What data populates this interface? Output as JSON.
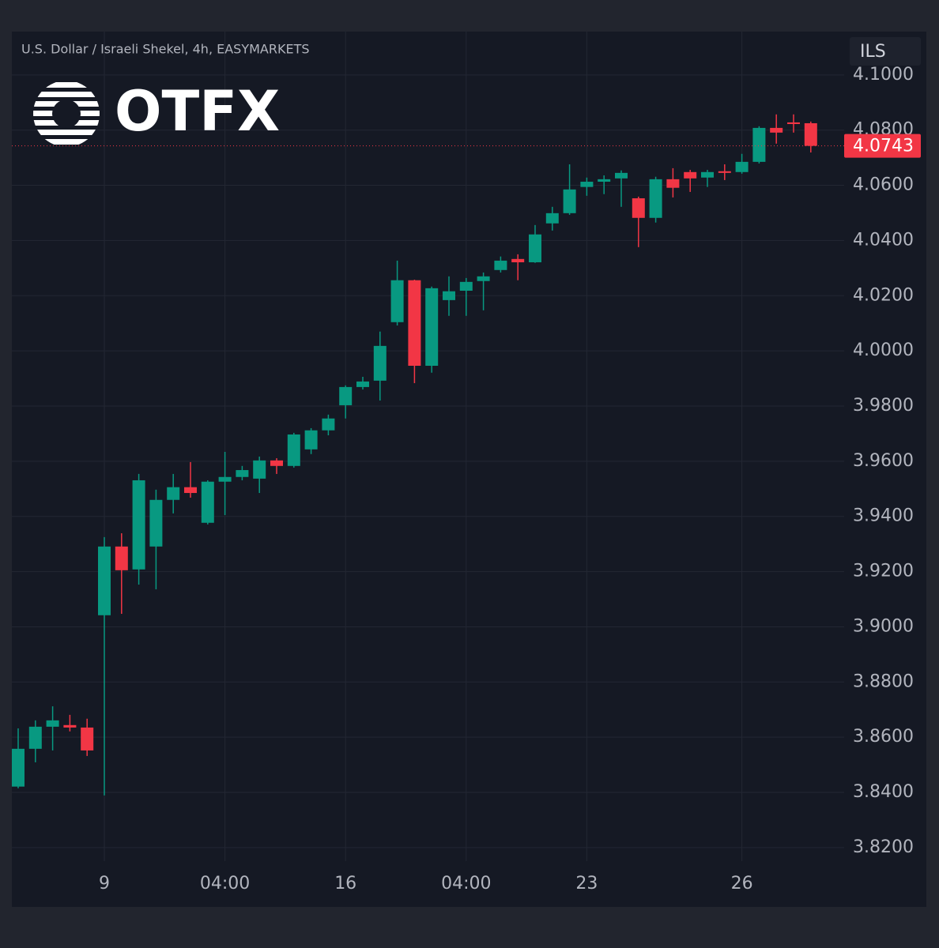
{
  "chart_data": {
    "type": "candlestick",
    "title": "U.S. Dollar / Israeli Shekel, 4h, EASYMARKETS",
    "logo": "OTFX",
    "currency": "ILS",
    "categories": [
      null,
      null,
      null,
      null,
      null,
      "9",
      null,
      null,
      null,
      null,
      null,
      null,
      "04:00",
      null,
      null,
      null,
      null,
      null,
      null,
      "16",
      null,
      null,
      null,
      null,
      null,
      null,
      "04:00",
      null,
      null,
      null,
      null,
      null,
      null,
      "23",
      null,
      null,
      null,
      null,
      null,
      null,
      null,
      null,
      "26",
      null,
      null,
      null,
      null
    ],
    "open": [
      3.8421,
      3.8558,
      3.8638,
      3.8644,
      3.8635,
      3.9042,
      3.9291,
      3.9208,
      3.9291,
      3.946,
      3.9506,
      3.9377,
      3.9526,
      3.9543,
      3.9537,
      3.9603,
      3.9583,
      3.9643,
      3.9712,
      3.9803,
      3.9869,
      3.9892,
      4.0104,
      4.0256,
      3.9946,
      4.0184,
      4.0218,
      4.0253,
      4.0293,
      4.0333,
      4.0321,
      4.0462,
      4.0499,
      4.0594,
      4.0613,
      4.0625,
      4.0553,
      4.0482,
      4.0622,
      4.0648,
      4.0628,
      4.0651,
      4.0648,
      4.0685,
      4.0808,
      4.0828,
      4.0825
    ],
    "high": [
      3.8632,
      3.8661,
      3.8712,
      3.8681,
      3.8667,
      3.9325,
      3.9339,
      3.9554,
      3.9497,
      3.9554,
      3.9597,
      3.9531,
      3.9634,
      3.9583,
      3.9617,
      3.9611,
      3.9703,
      3.972,
      3.9769,
      3.9875,
      3.9906,
      4.007,
      4.0327,
      4.0258,
      4.0233,
      4.027,
      4.0264,
      4.0284,
      4.0342,
      4.035,
      4.0456,
      4.0522,
      4.0676,
      4.0628,
      4.0636,
      4.0654,
      4.0559,
      4.0631,
      4.0662,
      4.0656,
      4.0656,
      4.0676,
      4.0714,
      4.0814,
      4.0857,
      4.0857,
      4.0831
    ],
    "low": [
      3.8415,
      3.8509,
      3.8552,
      3.8621,
      3.8532,
      3.8389,
      3.9047,
      3.9153,
      3.9136,
      3.9411,
      3.9468,
      3.9371,
      3.9405,
      3.9531,
      3.9485,
      3.9554,
      3.9577,
      3.9626,
      3.9694,
      3.9755,
      3.986,
      3.982,
      4.0092,
      3.9883,
      3.9921,
      4.0127,
      4.0127,
      4.0147,
      4.0284,
      4.0256,
      4.0319,
      4.0436,
      4.0493,
      4.0562,
      4.0568,
      4.0522,
      4.0376,
      4.0465,
      4.0556,
      4.0576,
      4.0594,
      4.0619,
      4.0642,
      4.0679,
      4.0751,
      4.0791,
      4.0719
    ],
    "close": [
      3.8558,
      3.8638,
      3.8661,
      3.8635,
      3.8552,
      3.9291,
      3.9205,
      3.9531,
      3.946,
      3.9506,
      3.9485,
      3.9526,
      3.9543,
      3.9568,
      3.9603,
      3.9583,
      3.9697,
      3.9712,
      3.9755,
      3.9869,
      3.9889,
      4.0018,
      4.0256,
      3.9946,
      4.0227,
      4.0216,
      4.025,
      4.027,
      4.0327,
      4.0321,
      4.0422,
      4.0499,
      4.0585,
      4.0613,
      4.0622,
      4.0645,
      4.0482,
      4.0622,
      4.0591,
      4.0625,
      4.0648,
      4.0645,
      4.0685,
      4.0808,
      4.0791,
      4.0822,
      4.0743
    ],
    "last_price": 4.0743,
    "up_color": "#089981",
    "down_color": "#f23645",
    "ylim": [
      3.8151,
      4.1157
    ],
    "yticks": [
      {
        "value": 4.1,
        "label": "4.1000"
      },
      {
        "value": 4.08,
        "label": "4.0800"
      },
      {
        "value": 4.06,
        "label": "4.0600"
      },
      {
        "value": 4.04,
        "label": "4.0400"
      },
      {
        "value": 4.02,
        "label": "4.0200"
      },
      {
        "value": 4.0,
        "label": "4.0000"
      },
      {
        "value": 3.98,
        "label": "3.9800"
      },
      {
        "value": 3.96,
        "label": "3.9600"
      },
      {
        "value": 3.94,
        "label": "3.9400"
      },
      {
        "value": 3.92,
        "label": "3.9200"
      },
      {
        "value": 3.9,
        "label": "3.9000"
      },
      {
        "value": 3.88,
        "label": "3.8800"
      },
      {
        "value": 3.86,
        "label": "3.8600"
      },
      {
        "value": 3.84,
        "label": "3.8400"
      },
      {
        "value": 3.82,
        "label": "3.8200"
      }
    ],
    "grid": true
  }
}
